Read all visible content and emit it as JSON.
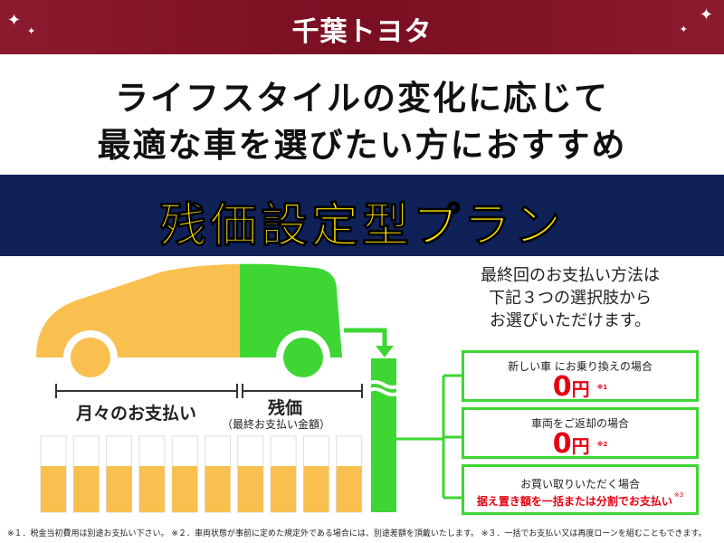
{
  "header": {
    "logo": "千葉トヨタ",
    "bg": "#7a0f22"
  },
  "lead": {
    "line1": "ライフスタイルの変化に応じて",
    "line2": "最適な車を選びたい方におすすめ"
  },
  "banner": {
    "title": "残価設定型プラン",
    "bg": "#0f2157",
    "text_color": "#ffe600"
  },
  "diagram": {
    "monthly_label": "月々のお支払い",
    "residual_label": "残価",
    "residual_sub": "（最終お支払い金額）",
    "monthly_color": "#f9bf4f",
    "residual_color": "#3ed633"
  },
  "intro": {
    "line1": "最終回のお支払い方法は",
    "line2": "下記３つの選択肢から",
    "line3": "お選びいただけます。"
  },
  "options": [
    {
      "title": "新しい車 にお乗り換えの場合",
      "amount": "0",
      "unit": "円",
      "note": "※1"
    },
    {
      "title": "車両をご返却の場合",
      "amount": "0",
      "unit": "円",
      "note": "※2"
    },
    {
      "title": "お買い取りいただく場合",
      "detail": "据え置き額を一括または分割でお支払い",
      "note": "※3"
    }
  ],
  "footnote": "※１．税金当初費用は別途お支払い下さい。 ※２．車両状態が事前に定めた規定外である場合には、別途差額を頂戴いたします。 ※３．一括でお支払い又は再度ローンを組むこともできます。"
}
